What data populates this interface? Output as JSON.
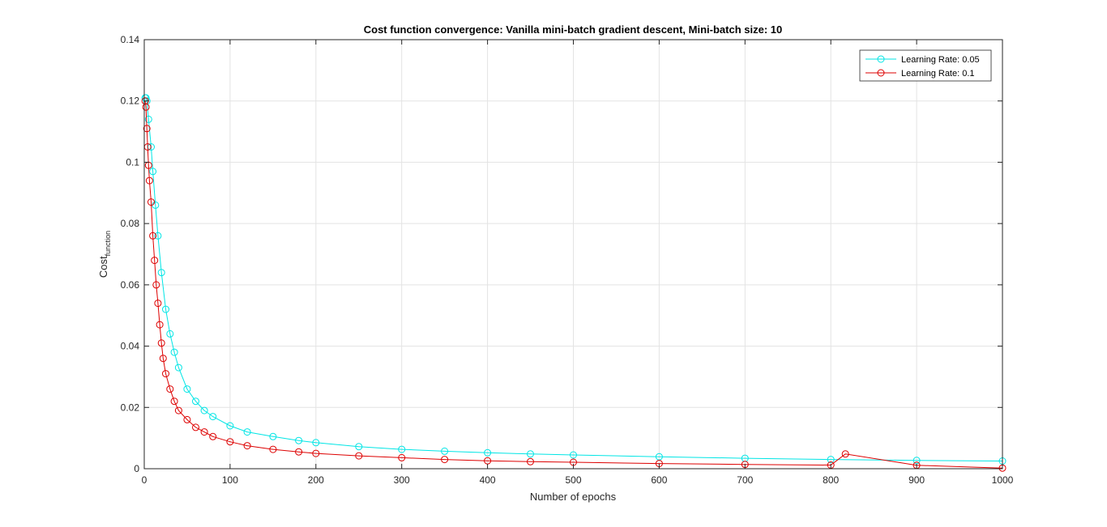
{
  "chart_data": {
    "type": "line",
    "title": "Cost function convergence: Vanilla mini-batch gradient descent, Mini-batch size: 10",
    "xlabel": "Number of epochs",
    "ylabel": "Cost_function",
    "ylabel_main": "Cost",
    "ylabel_sub": "function",
    "xlim": [
      0,
      1000
    ],
    "ylim": [
      0,
      0.14
    ],
    "x_ticks": [
      0,
      100,
      200,
      300,
      400,
      500,
      600,
      700,
      800,
      900,
      1000
    ],
    "x_tick_labels": [
      "0",
      "100",
      "200",
      "300",
      "400",
      "500",
      "600",
      "700",
      "800",
      "900",
      "1000"
    ],
    "y_ticks": [
      0,
      0.02,
      0.04,
      0.06,
      0.08,
      0.1,
      0.12,
      0.14
    ],
    "y_tick_labels": [
      "0",
      "0.02",
      "0.04",
      "0.06",
      "0.08",
      "0.1",
      "0.12",
      "0.14"
    ],
    "grid": true,
    "legend_position": "top-right",
    "marker": "circle",
    "series": [
      {
        "name": "Learning Rate: 0.05",
        "color": "#00e5e5",
        "x": [
          1,
          2,
          3,
          5,
          8,
          10,
          13,
          16,
          20,
          25,
          30,
          35,
          40,
          50,
          60,
          70,
          80,
          100,
          120,
          150,
          180,
          200,
          250,
          300,
          350,
          400,
          450,
          500,
          600,
          700,
          800,
          900,
          1000
        ],
        "y": [
          0.121,
          0.121,
          0.12,
          0.114,
          0.105,
          0.097,
          0.086,
          0.076,
          0.064,
          0.052,
          0.044,
          0.038,
          0.033,
          0.026,
          0.022,
          0.019,
          0.017,
          0.014,
          0.012,
          0.0105,
          0.0092,
          0.0085,
          0.0072,
          0.0063,
          0.0057,
          0.0052,
          0.0048,
          0.0045,
          0.0039,
          0.0034,
          0.003,
          0.0027,
          0.0025
        ]
      },
      {
        "name": "Learning Rate: 0.1",
        "color": "#dd0000",
        "x": [
          1,
          2,
          3,
          4,
          5,
          6,
          8,
          10,
          12,
          14,
          16,
          18,
          20,
          22,
          25,
          30,
          35,
          40,
          50,
          60,
          70,
          80,
          100,
          120,
          150,
          180,
          200,
          250,
          300,
          350,
          400,
          450,
          500,
          600,
          700,
          800,
          817,
          900,
          1000
        ],
        "y": [
          0.12,
          0.118,
          0.111,
          0.105,
          0.099,
          0.094,
          0.087,
          0.076,
          0.068,
          0.06,
          0.054,
          0.047,
          0.041,
          0.036,
          0.031,
          0.026,
          0.022,
          0.019,
          0.016,
          0.0135,
          0.012,
          0.0105,
          0.0088,
          0.0075,
          0.0063,
          0.0055,
          0.005,
          0.0042,
          0.0036,
          0.003,
          0.0026,
          0.0023,
          0.0021,
          0.0017,
          0.0014,
          0.0012,
          0.0048,
          0.0011,
          0.0002
        ]
      }
    ]
  }
}
